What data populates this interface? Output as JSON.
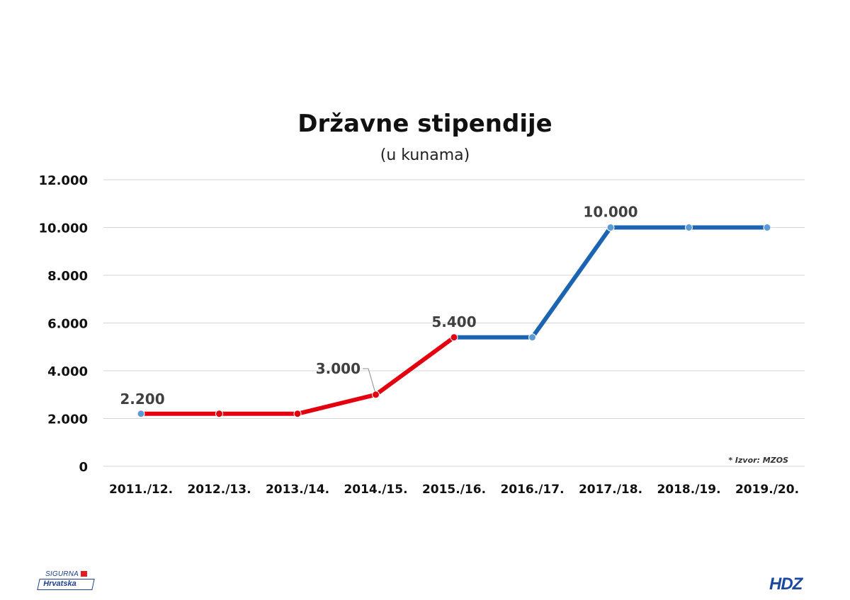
{
  "colors": {
    "red_series": "#e3000f",
    "blue_series": "#1b64b2",
    "marker_blue": "#5b9bd5",
    "grid": "#d4d4d4"
  },
  "chart_data": {
    "type": "line",
    "title": "Državne stipendije",
    "subtitle": "(u kunama)",
    "categories": [
      "2011./12.",
      "2012./13.",
      "2013./14.",
      "2014./15.",
      "2015./16.",
      "2016./17.",
      "2017./18.",
      "2018./19.",
      "2019./20."
    ],
    "values": [
      2200,
      2200,
      2200,
      3000,
      5400,
      5400,
      10000,
      10000,
      10000
    ],
    "segments": [
      {
        "from_index": 0,
        "to_index": 4,
        "color": "#e3000f"
      },
      {
        "from_index": 4,
        "to_index": 8,
        "color": "#1b64b2"
      }
    ],
    "ylim": [
      0,
      12000
    ],
    "yticks": [
      0,
      2000,
      4000,
      6000,
      8000,
      10000,
      12000
    ],
    "ytick_labels": [
      "0",
      "2.000",
      "4.000",
      "6.000",
      "8.000",
      "10.000",
      "12.000"
    ],
    "data_labels": [
      {
        "index": 0,
        "text": "2.200"
      },
      {
        "index": 3,
        "text": "3.000"
      },
      {
        "index": 4,
        "text": "5.400"
      },
      {
        "index": 6,
        "text": "10.000"
      }
    ],
    "grid": true,
    "legend": "none",
    "source_note": "* Izvor: MZOS"
  },
  "logos": {
    "left_top": "SIGURNA",
    "left_bottom": "Hrvatska",
    "right": "HDZ"
  }
}
